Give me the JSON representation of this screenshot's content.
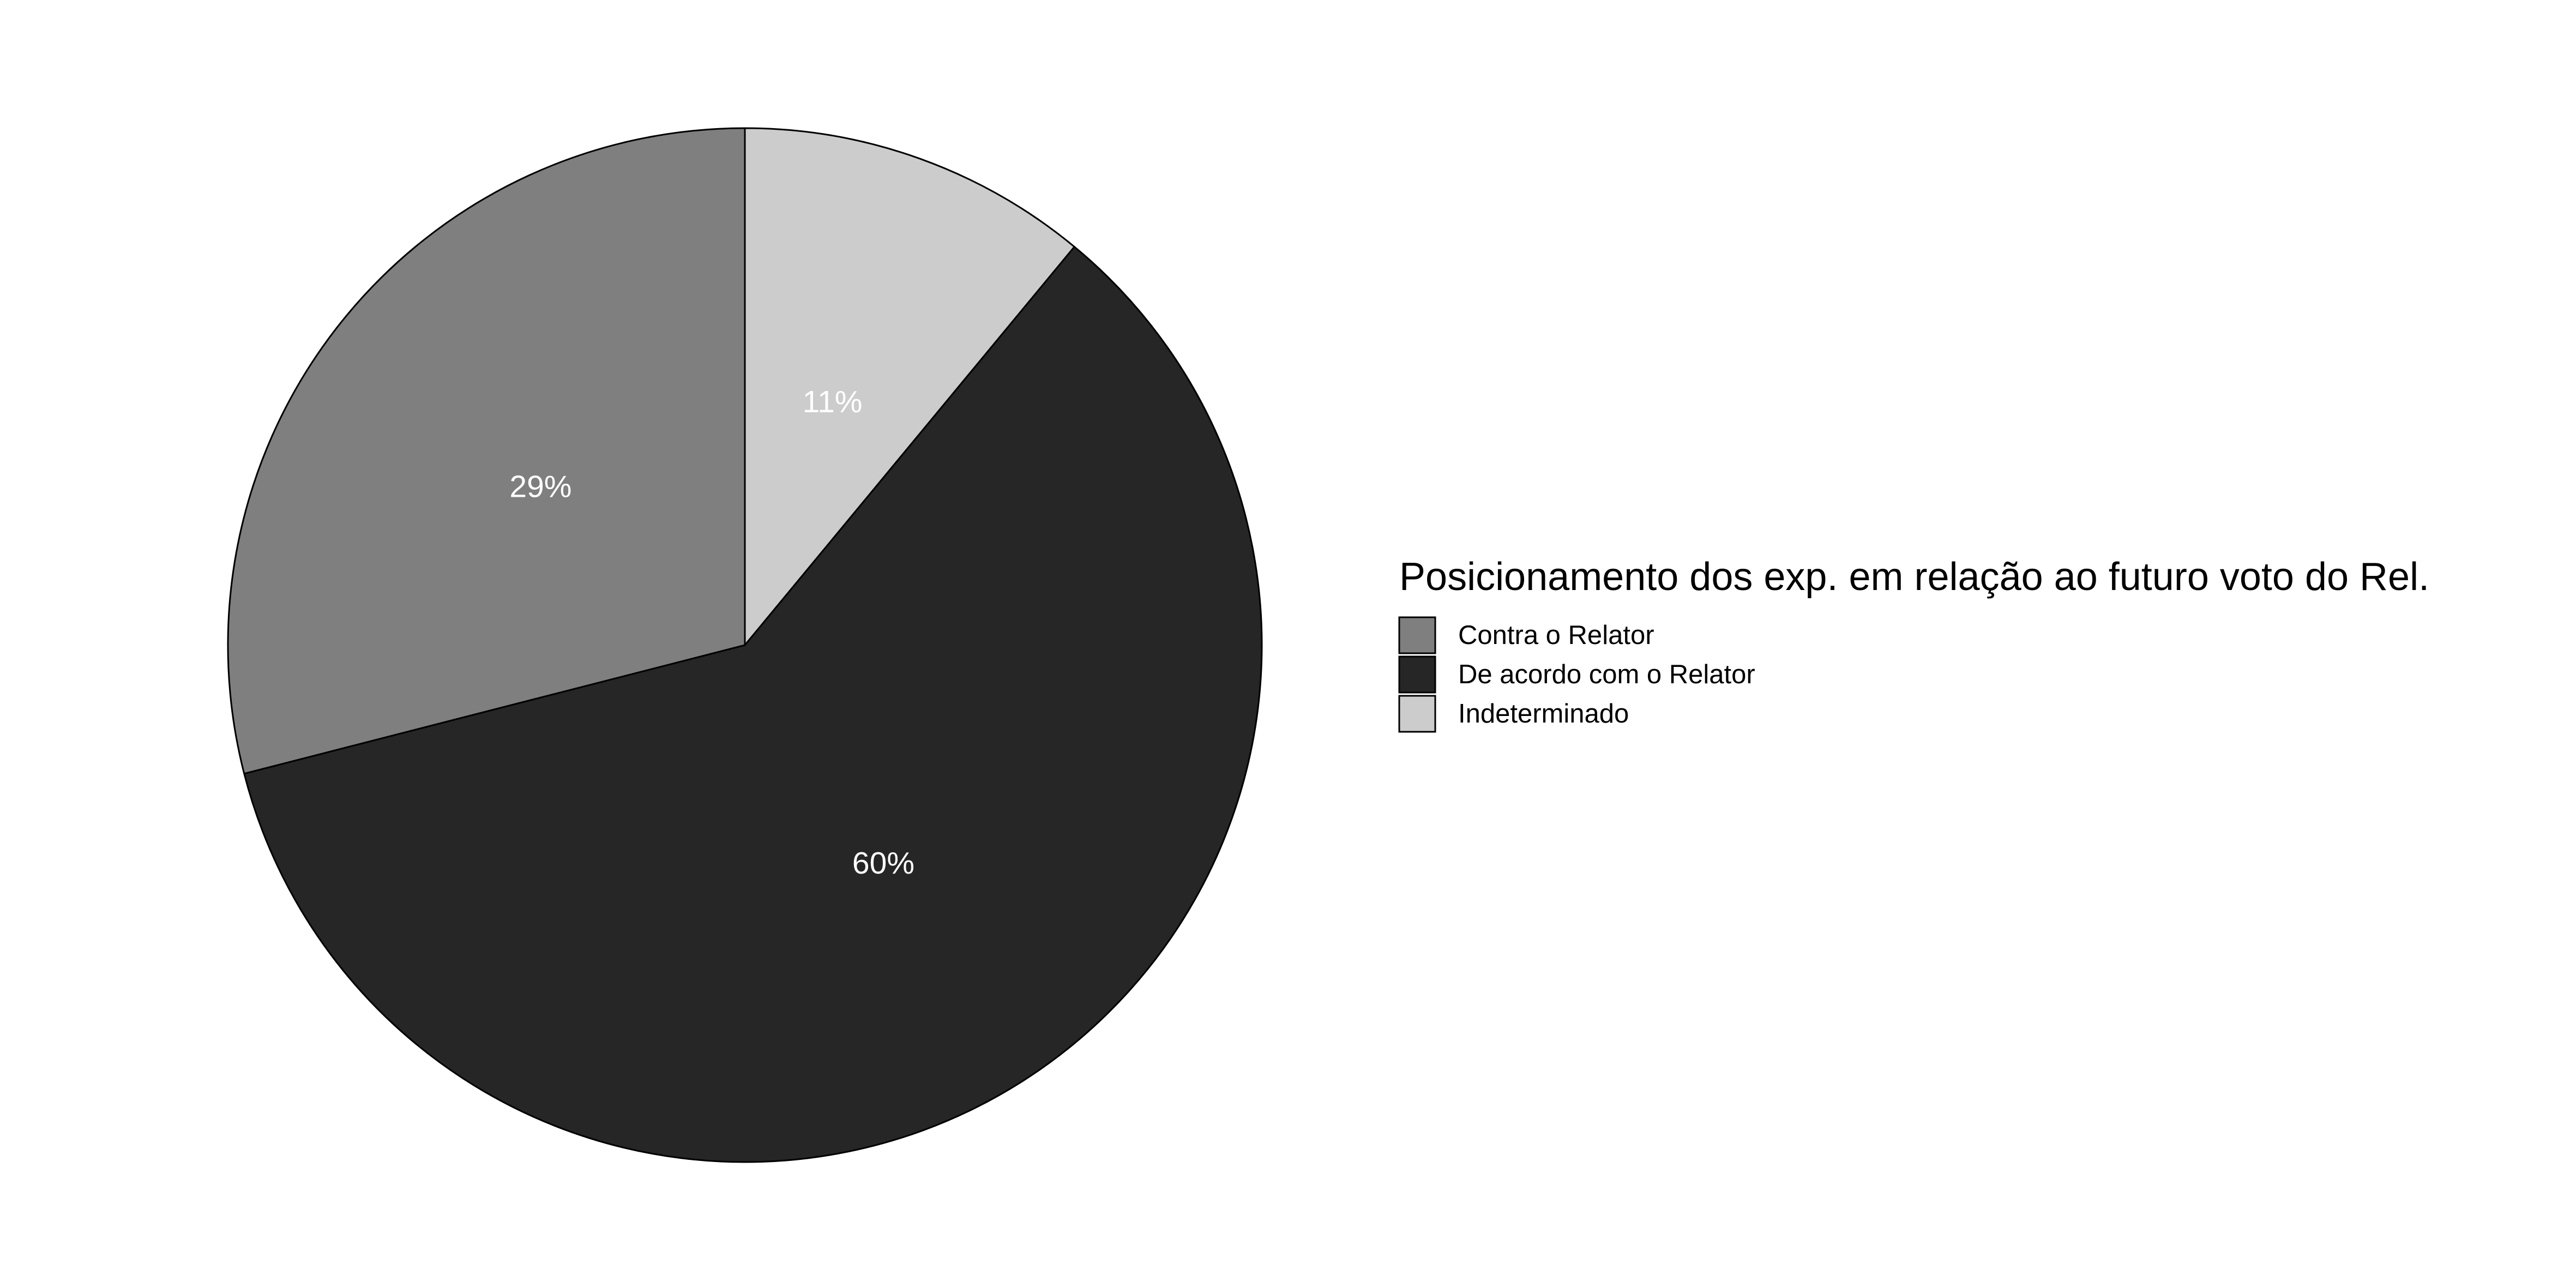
{
  "chart_data": {
    "type": "pie",
    "categories": [
      "Contra o Relator",
      "De acordo com o Relator",
      "Indeterminado"
    ],
    "values": [
      29,
      60,
      11
    ],
    "value_labels": [
      "29%",
      "60%",
      "11%"
    ],
    "colors": [
      "#7f7f7f",
      "#262626",
      "#cccccc"
    ],
    "slice_order": [
      "Indeterminado",
      "De acordo com o Relator",
      "Contra o Relator"
    ],
    "start": "top",
    "direction": "clockwise",
    "legend": {
      "title": "Posicionamento dos exp. em relação ao futuro voto do Rel.",
      "placement": "right"
    }
  }
}
